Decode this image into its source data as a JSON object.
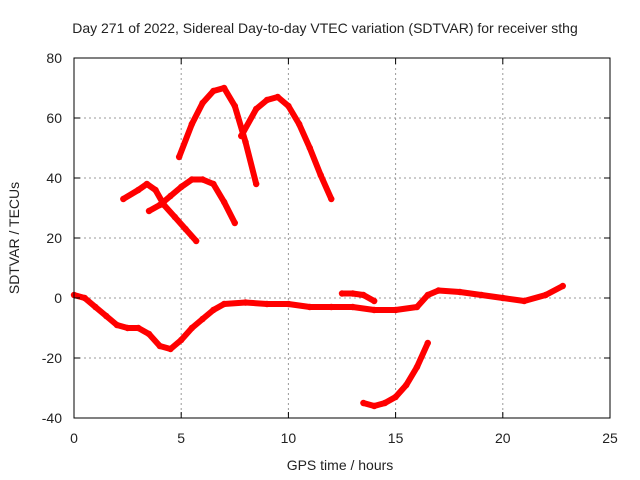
{
  "chart_data": {
    "type": "scatter",
    "title": "Day 271 of 2022, Sidereal Day-to-day VTEC variation (SDTVAR) for receiver sthg",
    "xlabel": "GPS time / hours",
    "ylabel": "SDTVAR / TECUs",
    "xlim": [
      0,
      25
    ],
    "ylim": [
      -40,
      80
    ],
    "xticks": [
      "0",
      "5",
      "10",
      "15",
      "20",
      "25"
    ],
    "yticks": [
      "-40",
      "-20",
      "0",
      "20",
      "40",
      "60",
      "80"
    ],
    "grid": true,
    "series_color": "#ff0000",
    "series": [
      {
        "name": "main track",
        "x": [
          0,
          0.5,
          1,
          1.5,
          2,
          2.5,
          3,
          3.5,
          4,
          4.5,
          5,
          5.5,
          6,
          6.5,
          7,
          8,
          9,
          10,
          11,
          12,
          13,
          14,
          15,
          16,
          16.5,
          17,
          18,
          19,
          20,
          21,
          22,
          22.8
        ],
        "y": [
          1,
          0,
          -3,
          -6,
          -9,
          -10,
          -10,
          -12,
          -16,
          -17,
          -14,
          -10,
          -7,
          -4,
          -2,
          -1.5,
          -2,
          -2,
          -3,
          -3,
          -3,
          -4,
          -4,
          -3,
          1,
          2.5,
          2,
          1,
          0,
          -1,
          1,
          4
        ]
      },
      {
        "name": "low pass",
        "x": [
          13.5,
          14,
          14.5,
          15,
          15.5,
          16,
          16.5
        ],
        "y": [
          -35,
          -36,
          -35,
          -33,
          -29,
          -23,
          -15
        ]
      },
      {
        "name": "short arc",
        "x": [
          12.5,
          13,
          13.5,
          14
        ],
        "y": [
          1.5,
          1.5,
          1,
          -1
        ]
      },
      {
        "name": "arc A",
        "x": [
          4.9,
          5.5,
          6,
          6.5,
          7,
          7.5,
          8,
          8.5
        ],
        "y": [
          47,
          58,
          65,
          69,
          70,
          64,
          52,
          38
        ]
      },
      {
        "name": "arc B",
        "x": [
          7.8,
          8.5,
          9,
          9.5,
          10,
          10.5,
          11,
          11.5,
          12
        ],
        "y": [
          54,
          63,
          66,
          67,
          64,
          58,
          50,
          41,
          33
        ]
      },
      {
        "name": "arc C",
        "x": [
          2.3,
          3,
          3.4,
          3.8,
          4.2,
          4.7,
          5.2,
          5.7
        ],
        "y": [
          33,
          36,
          38,
          36,
          31,
          27,
          23,
          19
        ]
      },
      {
        "name": "arc D",
        "x": [
          3.5,
          4,
          4.5,
          5,
          5.5,
          6,
          6.5,
          7,
          7.5
        ],
        "y": [
          29,
          31,
          34,
          37,
          39.5,
          39.5,
          38,
          32,
          25
        ]
      }
    ]
  }
}
